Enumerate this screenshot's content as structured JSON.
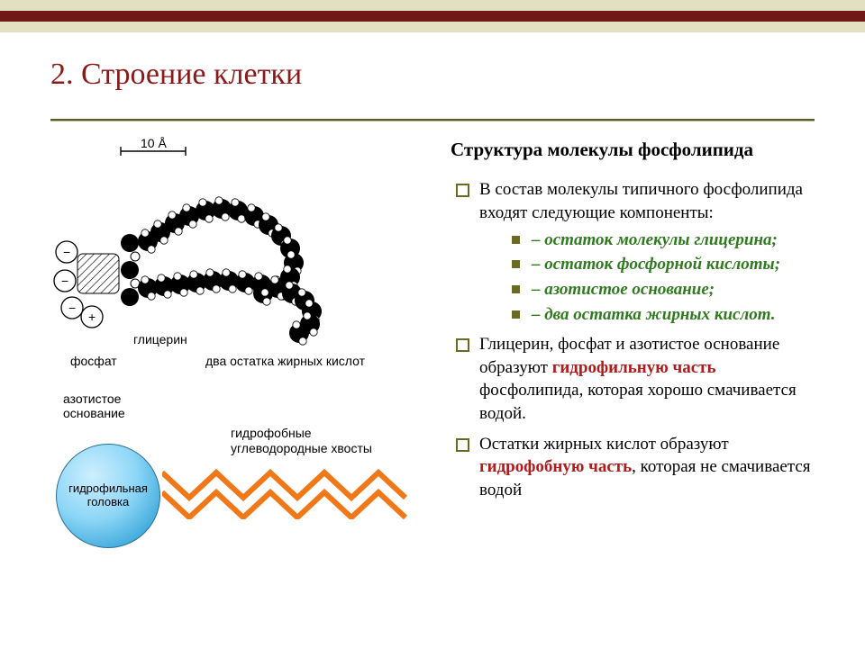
{
  "bars": {
    "color1": "#e3dfc1",
    "color2": "#6e1818",
    "color3": "#e3dfc1"
  },
  "title": {
    "text": "2. Строение клетки",
    "color": "#8a1a1a"
  },
  "subtitle": "Структура молекулы фосфолипида",
  "intro": "В состав молекулы типичного фосфолипида входят следующие компоненты:",
  "components": [
    "– остаток молекулы глицерина;",
    "– остаток фосфорной кислоты;",
    "– азотистое основание;",
    "– два остатка жирных кислот."
  ],
  "para2": {
    "before": "Глицерин, фосфат и азотистое основание образуют ",
    "em": "гидрофильную часть",
    "after": " фосфолипида, которая хорошо смачивается водой."
  },
  "para3": {
    "before": "Остатки жирных кислот образуют ",
    "em": "гидрофобную часть",
    "after": ", которая не смачивается водой"
  },
  "figure": {
    "scale_label": "10 Å",
    "labels": {
      "glycerin": "глицерин",
      "phosphate": "фосфат",
      "two_tails": "два остатка жирных кислот",
      "nitro_base_l1": "азотистое",
      "nitro_base_l2": "основание"
    },
    "schematic": {
      "head_label_l1": "гидрофильная",
      "head_label_l2": "головка",
      "tail_label_l1": "гидрофобные",
      "tail_label_l2": "углеводородные хвосты",
      "tail_color": "#f07818"
    }
  }
}
